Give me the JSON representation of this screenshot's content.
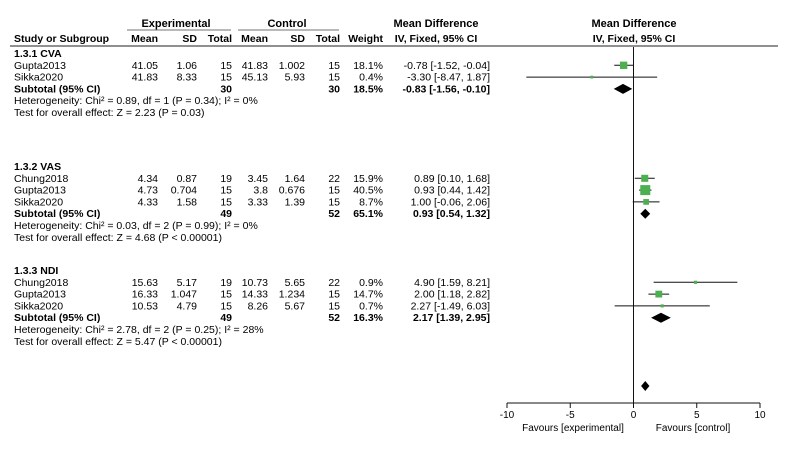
{
  "headers": {
    "study": "Study or Subgroup",
    "experimental": "Experimental",
    "control": "Control",
    "md_left": "Mean Difference",
    "md_left_sub": "IV, Fixed, 95% CI",
    "md_right": "Mean Difference",
    "md_right_sub": "IV, Fixed, 95% CI",
    "mean": "Mean",
    "sd": "SD",
    "total": "Total",
    "weight": "Weight"
  },
  "chart_data": {
    "type": "table",
    "axis": {
      "xlim": [
        -10,
        10
      ],
      "ticks": [
        "-10",
        "-5",
        "0",
        "5",
        "10"
      ],
      "favours_left": "Favours [experimental]",
      "favours_right": "Favours [control]"
    },
    "subgroups": [
      {
        "title": "1.3.1 CVA",
        "studies": [
          {
            "name": "Gupta2013",
            "e_mean": "41.05",
            "e_sd": "1.06",
            "e_total": "15",
            "c_mean": "41.83",
            "c_sd": "1.002",
            "c_total": "15",
            "weight": "18.1%",
            "ci_text": "-0.78 [-1.52, -0.04]",
            "md": -0.78,
            "lo": -1.52,
            "hi": -0.04,
            "w": 18.1
          },
          {
            "name": "Sikka2020",
            "e_mean": "41.83",
            "e_sd": "8.33",
            "e_total": "15",
            "c_mean": "45.13",
            "c_sd": "5.93",
            "c_total": "15",
            "weight": "0.4%",
            "ci_text": "-3.30 [-8.47, 1.87]",
            "md": -3.3,
            "lo": -8.47,
            "hi": 1.87,
            "w": 0.4
          }
        ],
        "subtotal": {
          "label": "Subtotal (95% CI)",
          "e_total": "30",
          "c_total": "30",
          "weight": "18.5%",
          "ci_text": "-0.83 [-1.56, -0.10]",
          "md": -0.83,
          "lo": -1.56,
          "hi": -0.1
        },
        "heterogeneity": "Heterogeneity: Chi² = 0.89, df = 1 (P = 0.34); I² = 0%",
        "overall": "Test for overall effect: Z = 2.23 (P = 0.03)"
      },
      {
        "title": "1.3.2 VAS",
        "studies": [
          {
            "name": "Chung2018",
            "e_mean": "4.34",
            "e_sd": "0.87",
            "e_total": "19",
            "c_mean": "3.45",
            "c_sd": "1.64",
            "c_total": "22",
            "weight": "15.9%",
            "ci_text": "0.89 [0.10, 1.68]",
            "md": 0.89,
            "lo": 0.1,
            "hi": 1.68,
            "w": 15.9
          },
          {
            "name": "Gupta2013",
            "e_mean": "4.73",
            "e_sd": "0.704",
            "e_total": "15",
            "c_mean": "3.8",
            "c_sd": "0.676",
            "c_total": "15",
            "weight": "40.5%",
            "ci_text": "0.93 [0.44, 1.42]",
            "md": 0.93,
            "lo": 0.44,
            "hi": 1.42,
            "w": 40.5
          },
          {
            "name": "Sikka2020",
            "e_mean": "4.33",
            "e_sd": "1.58",
            "e_total": "15",
            "c_mean": "3.33",
            "c_sd": "1.39",
            "c_total": "15",
            "weight": "8.7%",
            "ci_text": "1.00 [-0.06, 2.06]",
            "md": 1.0,
            "lo": -0.06,
            "hi": 2.06,
            "w": 8.7
          }
        ],
        "subtotal": {
          "label": "Subtotal (95% CI)",
          "e_total": "49",
          "c_total": "52",
          "weight": "65.1%",
          "ci_text": "0.93 [0.54, 1.32]",
          "md": 0.93,
          "lo": 0.54,
          "hi": 1.32
        },
        "heterogeneity": "Heterogeneity: Chi² = 0.03, df = 2 (P = 0.99); I² = 0%",
        "overall": "Test for overall effect: Z = 4.68 (P < 0.00001)"
      },
      {
        "title": "1.3.3 NDI",
        "studies": [
          {
            "name": "Chung2018",
            "e_mean": "15.63",
            "e_sd": "5.17",
            "e_total": "19",
            "c_mean": "10.73",
            "c_sd": "5.65",
            "c_total": "22",
            "weight": "0.9%",
            "ci_text": "4.90 [1.59, 8.21]",
            "md": 4.9,
            "lo": 1.59,
            "hi": 8.21,
            "w": 0.9
          },
          {
            "name": "Gupta2013",
            "e_mean": "16.33",
            "e_sd": "1.047",
            "e_total": "15",
            "c_mean": "14.33",
            "c_sd": "1.234",
            "c_total": "15",
            "weight": "14.7%",
            "ci_text": "2.00 [1.18, 2.82]",
            "md": 2.0,
            "lo": 1.18,
            "hi": 2.82,
            "w": 14.7
          },
          {
            "name": "Sikka2020",
            "e_mean": "10.53",
            "e_sd": "4.79",
            "e_total": "15",
            "c_mean": "8.26",
            "c_sd": "5.67",
            "c_total": "15",
            "weight": "0.7%",
            "ci_text": "2.27 [-1.49, 6.03]",
            "md": 2.27,
            "lo": -1.49,
            "hi": 6.03,
            "w": 0.7
          }
        ],
        "subtotal": {
          "label": "Subtotal (95% CI)",
          "e_total": "49",
          "c_total": "52",
          "weight": "16.3%",
          "ci_text": "2.17 [1.39, 2.95]",
          "md": 2.17,
          "lo": 1.39,
          "hi": 2.95
        },
        "heterogeneity": "Heterogeneity: Chi² = 2.78, df = 2 (P = 0.25); I² = 28%",
        "overall": "Test for overall effect: Z = 5.47 (P < 0.00001)"
      }
    ],
    "total": {
      "md": 0.93,
      "lo": 0.6,
      "hi": 1.26
    },
    "colors": {
      "square": "#4caf50",
      "text": "#1a1a1a",
      "diamond": "#000000"
    }
  }
}
